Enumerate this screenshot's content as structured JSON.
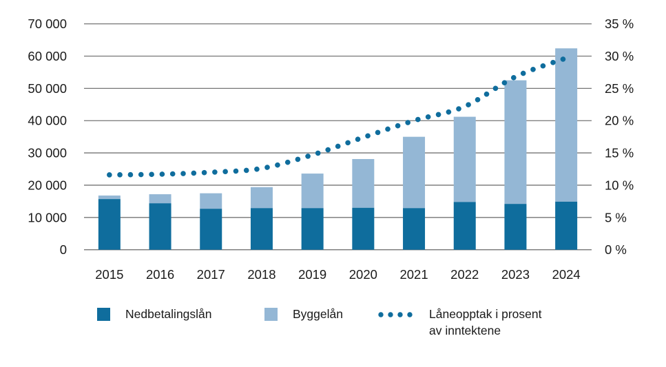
{
  "chart_data": {
    "type": "bar",
    "subtype": "stacked-bars-with-dotted-line",
    "title": "",
    "xlabel": "",
    "ylabel": "",
    "categories": [
      "2015",
      "2016",
      "2017",
      "2018",
      "2019",
      "2020",
      "2021",
      "2022",
      "2023",
      "2024"
    ],
    "series": [
      {
        "name": "Nedbetalingslån",
        "type": "bar",
        "stack": "loans",
        "axis": "left",
        "color": "#0f6d9d",
        "values": [
          15700,
          14400,
          12700,
          12900,
          12900,
          13000,
          12900,
          14800,
          14200,
          14900
        ]
      },
      {
        "name": "Byggelån",
        "type": "bar",
        "stack": "loans",
        "axis": "left",
        "color": "#94b7d5",
        "values": [
          1100,
          2800,
          4800,
          6500,
          10700,
          15100,
          22100,
          26400,
          38300,
          47500
        ]
      },
      {
        "name": "Låneopptak i prosent av inntektene",
        "type": "dotted-line",
        "axis": "right",
        "color": "#0f6d9d",
        "values": [
          11.6,
          11.7,
          12.0,
          12.6,
          14.7,
          17.4,
          20.0,
          22.2,
          26.8,
          29.7
        ]
      }
    ],
    "left_axis": {
      "min": 0,
      "max": 70000,
      "step": 10000,
      "tick_labels": [
        "0",
        "10 000",
        "20 000",
        "30 000",
        "40 000",
        "50 000",
        "60 000",
        "70 000"
      ]
    },
    "right_axis": {
      "min": 0,
      "max": 35,
      "step": 5,
      "tick_labels": [
        "0 %",
        "5 %",
        "10 %",
        "15 %",
        "20 %",
        "25 %",
        "30 %",
        "35 %"
      ]
    },
    "grid": true,
    "legend_position": "bottom",
    "colors": {
      "grid_line": "#757575",
      "text": "#1a1a1a"
    }
  },
  "legend": {
    "item1": "Nedbetalingslån",
    "item2": "Byggelån",
    "item3_line1": "Låneopptak i prosent",
    "item3_line2": "av inntektene"
  }
}
